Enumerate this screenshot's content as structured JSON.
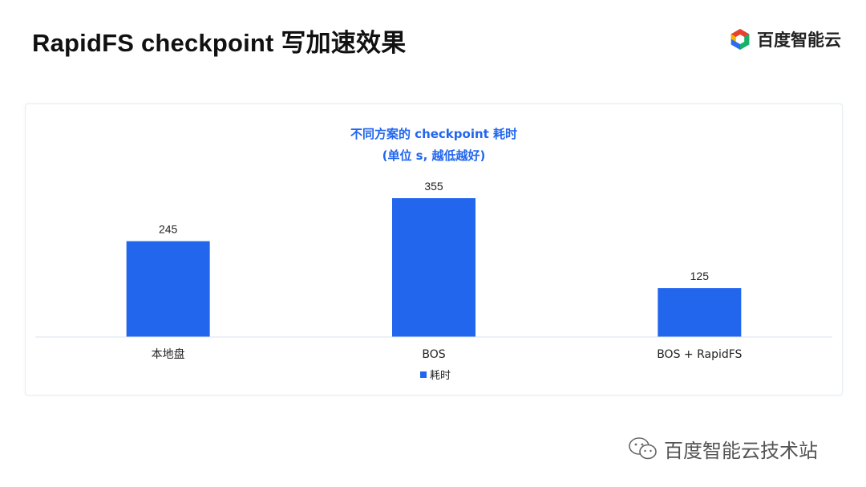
{
  "slide": {
    "title": "RapidFS  checkpoint 写加速效果"
  },
  "brand": {
    "name": "百度智能云",
    "icon": "baidu-cloud-logo",
    "colors": [
      "#e8412c",
      "#2a6bf2",
      "#17b26a",
      "#f5b400"
    ]
  },
  "watermark": {
    "text": "百度智能云技术站",
    "icon": "wechat-icon"
  },
  "chart_data": {
    "type": "bar",
    "title": [
      "不同方案的 checkpoint 耗时",
      "(单位 s, 越低越好)"
    ],
    "categories": [
      "本地盘",
      "BOS",
      "BOS + RapidFS"
    ],
    "series": [
      {
        "name": "耗时",
        "values": [
          245,
          355,
          125
        ],
        "color": "#2266ee"
      }
    ],
    "value_labels": [
      "245",
      "355",
      "125"
    ],
    "ylim": [
      0,
      355
    ],
    "grid": false,
    "y_axis_visible": false,
    "legend_position": "bottom-center"
  }
}
